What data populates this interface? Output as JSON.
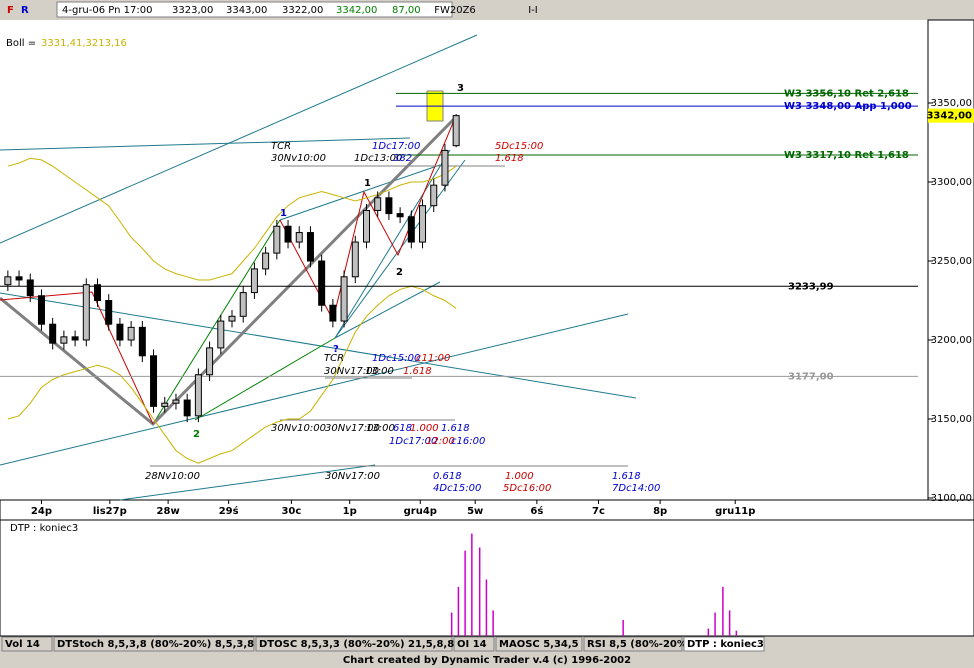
{
  "header": {
    "icons": [
      "F",
      "R"
    ],
    "date": "4-gru-06 Pn 17:00",
    "open": "3323,00",
    "high": "3343,00",
    "low": "3322,00",
    "close": "3342,00",
    "volume": "87,00"
  },
  "chart_data": {
    "type": "candlestick",
    "title": "FW20Z6",
    "subtitle": "I-I",
    "ohlc": {
      "open": [
        3235,
        3240,
        3238,
        3228,
        3210,
        3198,
        3202,
        3200,
        3235,
        3225,
        3210,
        3200,
        3208,
        3190,
        3158,
        3160,
        3162,
        3152,
        3178,
        3195,
        3212,
        3215,
        3230,
        3245,
        3255,
        3272,
        3262,
        3268,
        3250,
        3222,
        3212,
        3240,
        3262,
        3282,
        3290,
        3280,
        3278,
        3262,
        3285,
        3298,
        3323
      ],
      "high": [
        3244,
        3244,
        3242,
        3232,
        3214,
        3206,
        3206,
        3239,
        3239,
        3229,
        3214,
        3212,
        3212,
        3194,
        3164,
        3166,
        3166,
        3182,
        3199,
        3216,
        3219,
        3234,
        3249,
        3259,
        3276,
        3276,
        3272,
        3272,
        3254,
        3226,
        3244,
        3266,
        3286,
        3294,
        3294,
        3284,
        3282,
        3289,
        3302,
        3324,
        3343
      ],
      "low": [
        3231,
        3234,
        3224,
        3206,
        3194,
        3194,
        3196,
        3196,
        3221,
        3206,
        3196,
        3196,
        3186,
        3154,
        3154,
        3156,
        3148,
        3148,
        3174,
        3191,
        3208,
        3211,
        3226,
        3241,
        3251,
        3258,
        3258,
        3246,
        3218,
        3208,
        3208,
        3236,
        3258,
        3278,
        3276,
        3274,
        3258,
        3258,
        3281,
        3294,
        3322
      ],
      "close": [
        3240,
        3238,
        3228,
        3210,
        3198,
        3202,
        3200,
        3235,
        3225,
        3210,
        3200,
        3208,
        3190,
        3158,
        3160,
        3162,
        3152,
        3178,
        3195,
        3212,
        3215,
        3230,
        3245,
        3255,
        3272,
        3262,
        3268,
        3250,
        3222,
        3212,
        3240,
        3262,
        3282,
        3290,
        3280,
        3278,
        3262,
        3285,
        3298,
        3320,
        3342
      ]
    },
    "ylim": [
      3100,
      3400
    ],
    "yticks": [
      {
        "value": 3100,
        "label": "3100,00"
      },
      {
        "value": 3150,
        "label": "3150,00"
      },
      {
        "value": 3200,
        "label": "3200,00"
      },
      {
        "value": 3250,
        "label": "3250,00"
      },
      {
        "value": 3300,
        "label": "3300,00"
      },
      {
        "value": 3350,
        "label": "3350,00"
      }
    ],
    "xlim": [
      -0.7,
      82.1
    ],
    "xticks": [
      {
        "value": 3.0,
        "label": "24p"
      },
      {
        "value": 9.1,
        "label": "lis27p"
      },
      {
        "value": 14.3,
        "label": "28w"
      },
      {
        "value": 19.7,
        "label": "29ś"
      },
      {
        "value": 25.3,
        "label": "30c"
      },
      {
        "value": 30.5,
        "label": "1p"
      },
      {
        "value": 36.8,
        "label": "gru4p"
      },
      {
        "value": 41.7,
        "label": "5w"
      },
      {
        "value": 47.2,
        "label": "6ś"
      },
      {
        "value": 52.7,
        "label": "7c"
      },
      {
        "value": 58.2,
        "label": "8p"
      },
      {
        "value": 64.9,
        "label": "gru11p"
      }
    ],
    "bollinger": {
      "label": "Boll =",
      "value_text": "3331,41,3213,16",
      "color": "#c8b400",
      "upper": [
        3310,
        3312,
        3315,
        3314,
        3310,
        3305,
        3300,
        3295,
        3290,
        3285,
        3275,
        3265,
        3258,
        3250,
        3245,
        3242,
        3240,
        3238,
        3238,
        3240,
        3242,
        3250,
        3258,
        3268,
        3278,
        3285,
        3290,
        3292,
        3294,
        3292,
        3290,
        3288,
        3290,
        3292,
        3295,
        3298,
        3300,
        3300,
        3302,
        3305,
        3310
      ],
      "lower": [
        3150,
        3152,
        3160,
        3170,
        3175,
        3178,
        3180,
        3182,
        3184,
        3182,
        3178,
        3170,
        3160,
        3150,
        3140,
        3130,
        3125,
        3122,
        3125,
        3128,
        3130,
        3135,
        3140,
        3145,
        3148,
        3150,
        3150,
        3155,
        3165,
        3175,
        3190,
        3205,
        3215,
        3222,
        3228,
        3232,
        3234,
        3232,
        3228,
        3225,
        3220
      ]
    },
    "levels": [
      {
        "value": 3356.1,
        "label": "W3 3356,10 Ret 2,618",
        "color": "#006600"
      },
      {
        "value": 3348.0,
        "label": "W3 3348,00 App 1,000",
        "color": "#0000cc"
      },
      {
        "value": 3317.1,
        "label": "W3 3317,10 Ret 1,618",
        "color": "#006600"
      },
      {
        "value": 3233.99,
        "label": "3233,99",
        "color": "#000000"
      },
      {
        "value": 3177.0,
        "label": "3177,00",
        "color": "#999999"
      }
    ],
    "last_price": {
      "value": 3342,
      "label": "3342,00",
      "color": "#ffff00"
    },
    "annotations": [
      {
        "text": "3",
        "color": "#000000"
      },
      {
        "text": "1",
        "color": "#0000cc"
      },
      {
        "text": "1",
        "color": "#000000"
      },
      {
        "text": "2",
        "color": "#000000"
      },
      {
        "text": "2",
        "color": "#008000"
      },
      {
        "text": "?",
        "color": "#0000cc"
      },
      {
        "text": "TCR",
        "color": "#000000"
      },
      {
        "text": "30Nv10:00",
        "color": "#000000"
      },
      {
        "text": "1Dc13:00",
        "color": "#000000"
      },
      {
        "text": "1Dc17:00",
        "color": "#0000cc"
      },
      {
        "text": "382",
        "color": "#0000cc"
      },
      {
        "text": "5Dc15:00",
        "color": "#cc0000"
      },
      {
        "text": "1.618",
        "color": "#cc0000"
      },
      {
        "text": "TCR",
        "color": "#000000"
      },
      {
        "text": "30Nv17:00",
        "color": "#000000"
      },
      {
        "text": "13:00",
        "color": "#000000"
      },
      {
        "text": "1Dc15:00",
        "color": "#0000cc"
      },
      {
        "text": "c11:00",
        "color": "#cc0000"
      },
      {
        "text": "1.618",
        "color": "#cc0000"
      },
      {
        "text": "30Nv10:00",
        "color": "#000000"
      },
      {
        "text": "30Nv17:00",
        "color": "#000000"
      },
      {
        "text": "13:00",
        "color": "#000000"
      },
      {
        "text": "618",
        "color": "#0000cc"
      },
      {
        "text": "1.000",
        "color": "#cc0000"
      },
      {
        "text": "1.618",
        "color": "#0000cc"
      },
      {
        "text": "1Dc17:00",
        "color": "#0000cc"
      },
      {
        "text": "12:00",
        "color": "#cc0000"
      },
      {
        "text": "c16:00",
        "color": "#0000cc"
      },
      {
        "text": "28Nv10:00",
        "color": "#000000"
      },
      {
        "text": "30Nv17:00",
        "color": "#000000"
      },
      {
        "text": "0.618",
        "color": "#0000cc"
      },
      {
        "text": "4Dc15:00",
        "color": "#0000cc"
      },
      {
        "text": "1.000",
        "color": "#cc0000"
      },
      {
        "text": "5Dc16:00",
        "color": "#cc0000"
      },
      {
        "text": "1.618",
        "color": "#0000cc"
      },
      {
        "text": "7Dc14:00",
        "color": "#0000cc"
      }
    ],
    "indicator": {
      "type": "spikes",
      "title": "DTP : koniec3",
      "color": "#cc00cc",
      "ylim": [
        0,
        105
      ],
      "x": [
        39.6,
        40.2,
        40.8,
        41.4,
        42.1,
        42.7,
        43.3,
        54.9,
        62.5,
        63.1,
        63.8,
        64.4,
        65.0
      ],
      "values": [
        22,
        46,
        80,
        96,
        83,
        53,
        24,
        15,
        7,
        22,
        46,
        24,
        5
      ]
    }
  },
  "tabs": [
    "Vol 14",
    "DTStoch 8,5,3,8 (80%-20%) 8,5,3,8",
    "DTOSC 8,5,3,3 (80%-20%) 21,5,8,8",
    "OI 14",
    "MAOSC 5,34,5",
    "RSI 8,5 (80%-20%)",
    "DTP : koniec3"
  ],
  "footer": "Chart created by Dynamic Trader v.4  (c) 1996-2002"
}
